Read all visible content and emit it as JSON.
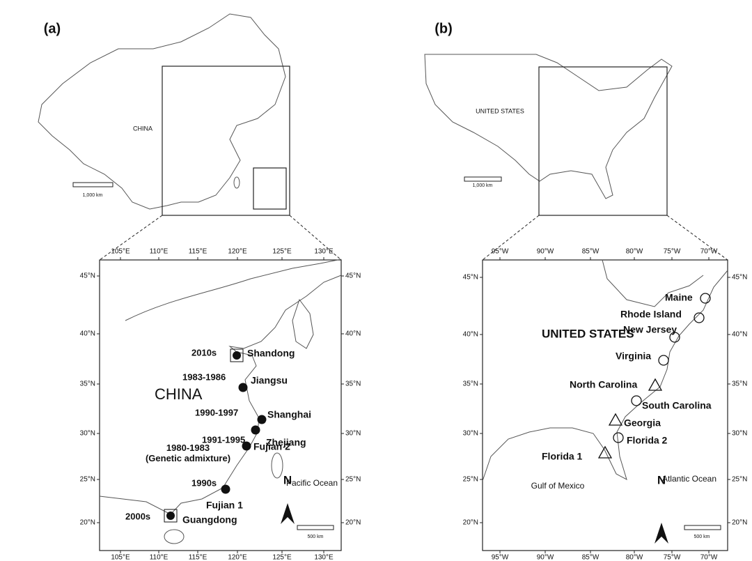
{
  "panels": [
    {
      "label": "(a)",
      "overview_country": "CHINA",
      "overview_scale": "1,000 km",
      "lon_ticks": [
        "105°E",
        "110°E",
        "115°E",
        "120°E",
        "125°E",
        "130°E"
      ],
      "lat_ticks": [
        "45°N",
        "40°N",
        "35°N",
        "30°N",
        "25°N",
        "20°N"
      ],
      "detail_country": "CHINA",
      "sites": [
        {
          "label": "Shandong",
          "period": "2010s"
        },
        {
          "label": "Jiangsu",
          "period": "1983-1986"
        },
        {
          "label": "Shanghai",
          "period": "1990-1997"
        },
        {
          "label": "Zhejiang",
          "period": "1991-1995"
        },
        {
          "label": "Fujian 2",
          "period": "1980-1983 (Genetic admixture)"
        },
        {
          "label": "Fujian 1",
          "period": "1990s"
        },
        {
          "label": "Guangdong",
          "period": "2000s"
        }
      ],
      "oceans": [
        "Pacific Ocean"
      ],
      "north": "N",
      "detail_scale": "500 km"
    },
    {
      "label": "(b)",
      "overview_country": "UNITED STATES",
      "overview_scale": "1,000 km",
      "lon_ticks": [
        "95°W",
        "90°W",
        "85°W",
        "80°W",
        "75°W",
        "70°W"
      ],
      "lat_ticks": [
        "45°N",
        "40°N",
        "35°N",
        "30°N",
        "25°N",
        "20°N"
      ],
      "detail_country": "UNITED STATES",
      "sites": [
        {
          "label": "Maine"
        },
        {
          "label": "Rhode Island"
        },
        {
          "label": "New Jersey"
        },
        {
          "label": "Virginia"
        },
        {
          "label": "North Carolina"
        },
        {
          "label": "South Carolina"
        },
        {
          "label": "Georgia"
        },
        {
          "label": "Florida 2"
        },
        {
          "label": "Florida 1"
        }
      ],
      "oceans": [
        "Gulf of Mexico",
        "Atlantic Ocean"
      ],
      "north": "N",
      "detail_scale": "500 km"
    }
  ]
}
